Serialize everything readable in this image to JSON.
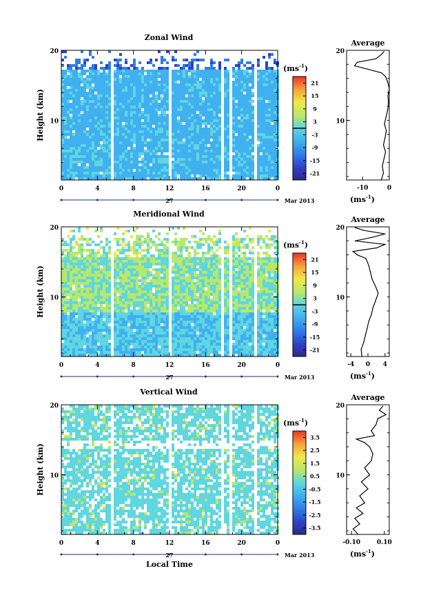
{
  "xlabel": "Local Time",
  "chart_data": [
    {
      "type": "heatmap",
      "title": "Zonal Wind",
      "ylabel": "Height (km)",
      "x_ticks": [
        "0",
        "4",
        "8",
        "12",
        "16",
        "20",
        "0"
      ],
      "x_range": [
        0,
        24
      ],
      "date_label": "27",
      "date_suffix": "Mar 2013",
      "y_ticks": [
        "10",
        "20"
      ],
      "y_range": [
        1.5,
        20
      ],
      "colorbar": {
        "unit": "(ms",
        "unit_exp": "-1",
        "ticks": [
          "21",
          "15",
          "9",
          "3",
          "-3",
          "-9",
          "-15",
          "-21"
        ],
        "range": [
          -24,
          24
        ],
        "zero_line": true
      },
      "profile": {
        "title": "Average",
        "x_ticks": [
          "-10",
          "0"
        ],
        "x_range": [
          -16,
          0
        ],
        "unit": "(ms",
        "unit_exp": "-1",
        "y_ticks": [
          "10",
          "20"
        ],
        "points": [
          {
            "x": -3,
            "y": 1.5
          },
          {
            "x": -2.2,
            "y": 2.5
          },
          {
            "x": -2.6,
            "y": 3.5
          },
          {
            "x": -2,
            "y": 4.5
          },
          {
            "x": -1.4,
            "y": 5.5
          },
          {
            "x": -2.2,
            "y": 6.5
          },
          {
            "x": -1.6,
            "y": 7.5
          },
          {
            "x": -1.1,
            "y": 8.5
          },
          {
            "x": -1.8,
            "y": 9.5
          },
          {
            "x": -1.2,
            "y": 10.5
          },
          {
            "x": -0.6,
            "y": 11.5
          },
          {
            "x": -0.3,
            "y": 12.5
          },
          {
            "x": -0.5,
            "y": 13.5
          },
          {
            "x": 0,
            "y": 14.5
          },
          {
            "x": -0.6,
            "y": 15.5
          },
          {
            "x": -1.5,
            "y": 16.3
          },
          {
            "x": -3,
            "y": 16.8
          },
          {
            "x": -8,
            "y": 17.3
          },
          {
            "x": -13,
            "y": 17.8
          },
          {
            "x": -12,
            "y": 18.3
          },
          {
            "x": -5,
            "y": 18.8
          },
          {
            "x": -3,
            "y": 19.4
          },
          {
            "x": -2,
            "y": 19.8
          }
        ]
      }
    },
    {
      "type": "heatmap",
      "title": "Meridional Wind",
      "ylabel": "Height (km)",
      "x_ticks": [
        "0",
        "4",
        "8",
        "12",
        "16",
        "20",
        "0"
      ],
      "x_range": [
        0,
        24
      ],
      "date_label": "27",
      "date_suffix": "Mar 2013",
      "y_ticks": [
        "10",
        "20"
      ],
      "y_range": [
        1.5,
        20
      ],
      "colorbar": {
        "unit": "(ms",
        "unit_exp": "-1",
        "ticks": [
          "21",
          "15",
          "9",
          "3",
          "-3",
          "-9",
          "-15",
          "-21"
        ],
        "range": [
          -24,
          24
        ],
        "zero_line": true
      },
      "profile": {
        "title": "Average",
        "x_ticks": [
          "-4",
          "0",
          "4"
        ],
        "x_range": [
          -5,
          5
        ],
        "unit": "(ms",
        "unit_exp": "-1",
        "y_ticks": [
          "10",
          "20"
        ],
        "points": [
          {
            "x": -1.4,
            "y": 1.5
          },
          {
            "x": -1.6,
            "y": 2.5
          },
          {
            "x": -1,
            "y": 3.5
          },
          {
            "x": -0.6,
            "y": 4.5
          },
          {
            "x": -0.2,
            "y": 5.5
          },
          {
            "x": 0.2,
            "y": 6.5
          },
          {
            "x": 0.8,
            "y": 7.5
          },
          {
            "x": 1.2,
            "y": 8.5
          },
          {
            "x": 1.8,
            "y": 9.5
          },
          {
            "x": 2.4,
            "y": 10.5
          },
          {
            "x": 1.8,
            "y": 11.5
          },
          {
            "x": 1,
            "y": 12.5
          },
          {
            "x": 0.6,
            "y": 13.5
          },
          {
            "x": 0.2,
            "y": 14.5
          },
          {
            "x": -0.5,
            "y": 15.5
          },
          {
            "x": -2.5,
            "y": 16
          },
          {
            "x": -3.5,
            "y": 16.5
          },
          {
            "x": 2,
            "y": 17
          },
          {
            "x": 4,
            "y": 17.5
          },
          {
            "x": -3,
            "y": 18
          },
          {
            "x": 1,
            "y": 18.5
          },
          {
            "x": 4,
            "y": 19
          },
          {
            "x": -1,
            "y": 19.5
          },
          {
            "x": -3,
            "y": 19.9
          }
        ]
      }
    },
    {
      "type": "heatmap",
      "title": "Vertical Wind",
      "ylabel": "Height (km)",
      "x_ticks": [
        "0",
        "4",
        "8",
        "12",
        "16",
        "20",
        "0"
      ],
      "x_range": [
        0,
        24
      ],
      "date_label": "27",
      "date_suffix": "Mar 2013",
      "y_ticks": [
        "10",
        "20"
      ],
      "y_range": [
        1.5,
        20
      ],
      "colorbar": {
        "unit": "(ms",
        "unit_exp": "-1",
        "ticks": [
          "3.5",
          "2.5",
          "1.5",
          "0.5",
          "-0.5",
          "-1.5",
          "-2.5",
          "-3.5"
        ],
        "range": [
          -4,
          4
        ],
        "zero_line": false
      },
      "profile": {
        "title": "Average",
        "x_ticks": [
          "-0.10",
          "0.10"
        ],
        "x_range": [
          -0.13,
          0.13
        ],
        "unit": "(ms",
        "unit_exp": "-1",
        "y_ticks": [
          "10",
          "20"
        ],
        "points": [
          {
            "x": -0.06,
            "y": 1.5
          },
          {
            "x": -0.09,
            "y": 2.3
          },
          {
            "x": -0.05,
            "y": 3
          },
          {
            "x": -0.08,
            "y": 3.8
          },
          {
            "x": -0.03,
            "y": 4.5
          },
          {
            "x": -0.07,
            "y": 5.3
          },
          {
            "x": -0.02,
            "y": 6
          },
          {
            "x": -0.05,
            "y": 7
          },
          {
            "x": 0,
            "y": 8
          },
          {
            "x": -0.04,
            "y": 9
          },
          {
            "x": 0.01,
            "y": 10
          },
          {
            "x": -0.02,
            "y": 11
          },
          {
            "x": 0.02,
            "y": 12
          },
          {
            "x": 0.03,
            "y": 13
          },
          {
            "x": 0.01,
            "y": 14
          },
          {
            "x": -0.02,
            "y": 14.6
          },
          {
            "x": -0.07,
            "y": 15.1
          },
          {
            "x": 0.04,
            "y": 15.6
          },
          {
            "x": 0.02,
            "y": 16.3
          },
          {
            "x": 0.05,
            "y": 17.2
          },
          {
            "x": 0.06,
            "y": 18
          },
          {
            "x": 0.11,
            "y": 18.6
          },
          {
            "x": 0.07,
            "y": 19.2
          },
          {
            "x": 0.09,
            "y": 19.8
          }
        ]
      }
    }
  ]
}
